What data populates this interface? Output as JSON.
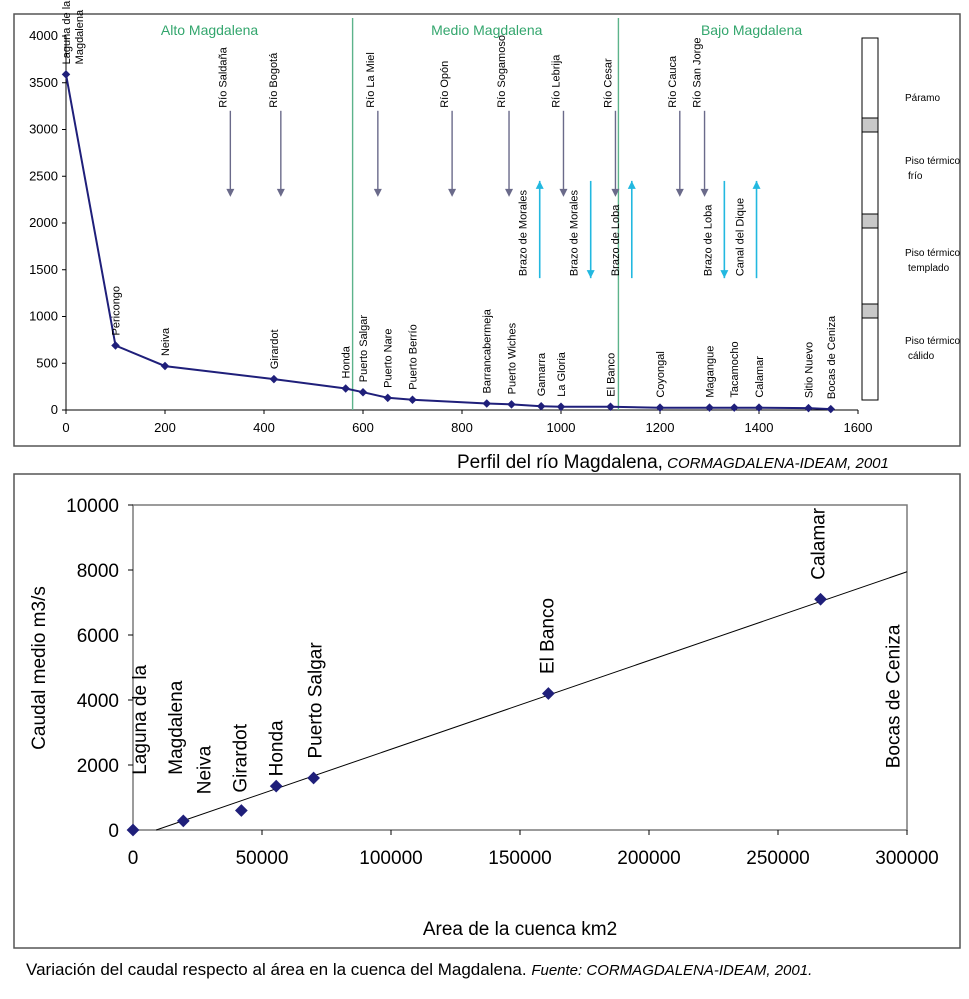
{
  "colors": {
    "line": "#1f1f7a",
    "marker": "#1f1f7a",
    "region_text": "#33a66d",
    "boundary": "#5cb38b",
    "tributary_arrow": "#6a6a8a",
    "channel_arrow": "#22b8e0",
    "frame": "#555555"
  },
  "chart_data": [
    {
      "type": "line",
      "title": "Perfil del río Magdalena",
      "source": "CORMAGDALENA-IDEAM, 2001",
      "xlim": [
        0,
        1600
      ],
      "ylim": [
        0,
        4000
      ],
      "xticks": [
        0,
        200,
        400,
        600,
        800,
        1000,
        1200,
        1400,
        1600
      ],
      "yticks": [
        0,
        500,
        1000,
        1500,
        2000,
        2500,
        3000,
        3500,
        4000
      ],
      "x": [
        0,
        100,
        200,
        420,
        565,
        600,
        650,
        700,
        850,
        900,
        960,
        1000,
        1100,
        1200,
        1300,
        1350,
        1400,
        1500,
        1545
      ],
      "y": [
        3590,
        690,
        470,
        330,
        230,
        190,
        130,
        110,
        70,
        60,
        40,
        35,
        35,
        25,
        25,
        25,
        25,
        20,
        10
      ],
      "stations": [
        {
          "label": "Laguna de la",
          "label2": "Magdalena",
          "x": 0,
          "y": 3590
        },
        {
          "label": "Pericongo",
          "x": 100,
          "y": 690
        },
        {
          "label": "Neiva",
          "x": 200,
          "y": 470
        },
        {
          "label": "Girardot",
          "x": 420,
          "y": 330
        },
        {
          "label": "Honda",
          "x": 565,
          "y": 230
        },
        {
          "label": "Puerto Salgar",
          "x": 600,
          "y": 190
        },
        {
          "label": "Puerto Nare",
          "x": 650,
          "y": 130
        },
        {
          "label": "Puerto Berrío",
          "x": 700,
          "y": 110
        },
        {
          "label": "Barrancabermeja",
          "x": 850,
          "y": 70
        },
        {
          "label": "Puerto Wiches",
          "x": 900,
          "y": 60
        },
        {
          "label": "Gamarra",
          "x": 960,
          "y": 40
        },
        {
          "label": "La Gloria",
          "x": 1000,
          "y": 35
        },
        {
          "label": "El Banco",
          "x": 1100,
          "y": 35
        },
        {
          "label": "Coyongal",
          "x": 1200,
          "y": 25
        },
        {
          "label": "Magangue",
          "x": 1300,
          "y": 25
        },
        {
          "label": "Tacamocho",
          "x": 1350,
          "y": 25
        },
        {
          "label": "Calamar",
          "x": 1400,
          "y": 25
        },
        {
          "label": "Sitio Nuevo",
          "x": 1500,
          "y": 20
        },
        {
          "label": "Bocas de Ceniza",
          "x": 1545,
          "y": 10
        }
      ],
      "regions": [
        {
          "name": "Alto Magdalena",
          "x": 290
        },
        {
          "name": "Medio Magdalena",
          "x": 850
        },
        {
          "name": "Bajo Magdalena",
          "x": 1385
        }
      ],
      "region_boundaries": [
        579,
        1116
      ],
      "tributaries": [
        {
          "label": "Río Saldaña",
          "x": 332,
          "y_top": 3200,
          "y_bottom": 2280
        },
        {
          "label": "Río Bogotá",
          "x": 434,
          "y_top": 3200,
          "y_bottom": 2280
        },
        {
          "label": "Río La Miel",
          "x": 630,
          "y_top": 3200,
          "y_bottom": 2280
        },
        {
          "label": "Río Opón",
          "x": 780,
          "y_top": 3200,
          "y_bottom": 2280
        },
        {
          "label": "Río Sogamoso",
          "x": 895,
          "y_top": 3200,
          "y_bottom": 2280
        },
        {
          "label": "Río Lebrija",
          "x": 1005,
          "y_top": 3200,
          "y_bottom": 2280
        },
        {
          "label": "Río Cesar",
          "x": 1110,
          "y_top": 3200,
          "y_bottom": 2280
        },
        {
          "label": "Río Cauca",
          "x": 1240,
          "y_top": 3200,
          "y_bottom": 2280
        },
        {
          "label": "Río San Jorge",
          "x": 1290,
          "y_top": 3200,
          "y_bottom": 2280
        }
      ],
      "channels": [
        {
          "label": "Brazo de Morales",
          "x": 957,
          "direction": "up"
        },
        {
          "label": "Brazo de Morales",
          "x": 1060,
          "direction": "down"
        },
        {
          "label": "Brazo de Loba",
          "x": 1143,
          "direction": "up"
        },
        {
          "label": "Brazo de Loba",
          "x": 1330,
          "direction": "down"
        },
        {
          "label": "Canal del Dique",
          "x": 1395,
          "direction": "up"
        }
      ],
      "thermal_zones": [
        {
          "line1": "Páramo",
          "line2": ""
        },
        {
          "line1": "Piso térmico",
          "line2": "frío"
        },
        {
          "line1": "Piso térmico",
          "line2": "templado"
        },
        {
          "line1": "Piso térmico",
          "line2": "cálido"
        }
      ]
    },
    {
      "type": "scatter",
      "title": "Variación del caudal respecto al área en la cuenca del Magdalena",
      "xlabel": "Area de la cuenca km2",
      "ylabel": "Caudal medio m3/s",
      "xlim": [
        0,
        300000
      ],
      "ylim": [
        0,
        10000
      ],
      "xticks": [
        0,
        50000,
        100000,
        150000,
        200000,
        250000,
        300000
      ],
      "yticks": [
        0,
        2000,
        4000,
        6000,
        8000,
        10000
      ],
      "points": [
        {
          "x": 0,
          "y": 0
        },
        {
          "x": 19500,
          "y": 280
        },
        {
          "x": 42000,
          "y": 600
        },
        {
          "x": 55500,
          "y": 1350
        },
        {
          "x": 70000,
          "y": 1600
        },
        {
          "x": 161000,
          "y": 4200
        },
        {
          "x": 266500,
          "y": 7100
        }
      ],
      "trendline": {
        "x": [
          9000,
          302000
        ],
        "y": [
          0,
          8000
        ]
      },
      "labels": [
        {
          "text": "Laguna de la",
          "x": 5000,
          "y": 1700
        },
        {
          "text": "Magdalena",
          "x": 19000,
          "y": 1700
        },
        {
          "text": "Neiva",
          "x": 30000,
          "y": 1100
        },
        {
          "text": "Girardot",
          "x": 44000,
          "y": 1150
        },
        {
          "text": "Honda",
          "x": 58000,
          "y": 1650
        },
        {
          "text": "Puerto Salgar",
          "x": 73000,
          "y": 2200
        },
        {
          "text": "El Banco",
          "x": 163000,
          "y": 4800
        },
        {
          "text": "Calamar",
          "x": 268000,
          "y": 7700
        },
        {
          "text": "Bocas de Ceniza",
          "x": 297000,
          "y": 1900
        }
      ]
    }
  ],
  "captions": {
    "top_main": "Perfil del río Magdalena,",
    "top_source": " CORMAGDALENA-IDEAM, 2001",
    "bottom_main": "Variación del caudal respecto al área en la cuenca del Magdalena.",
    "bottom_source_label": "Fuente:",
    "bottom_source": " CORMAGDALENA-IDEAM, 2001."
  }
}
